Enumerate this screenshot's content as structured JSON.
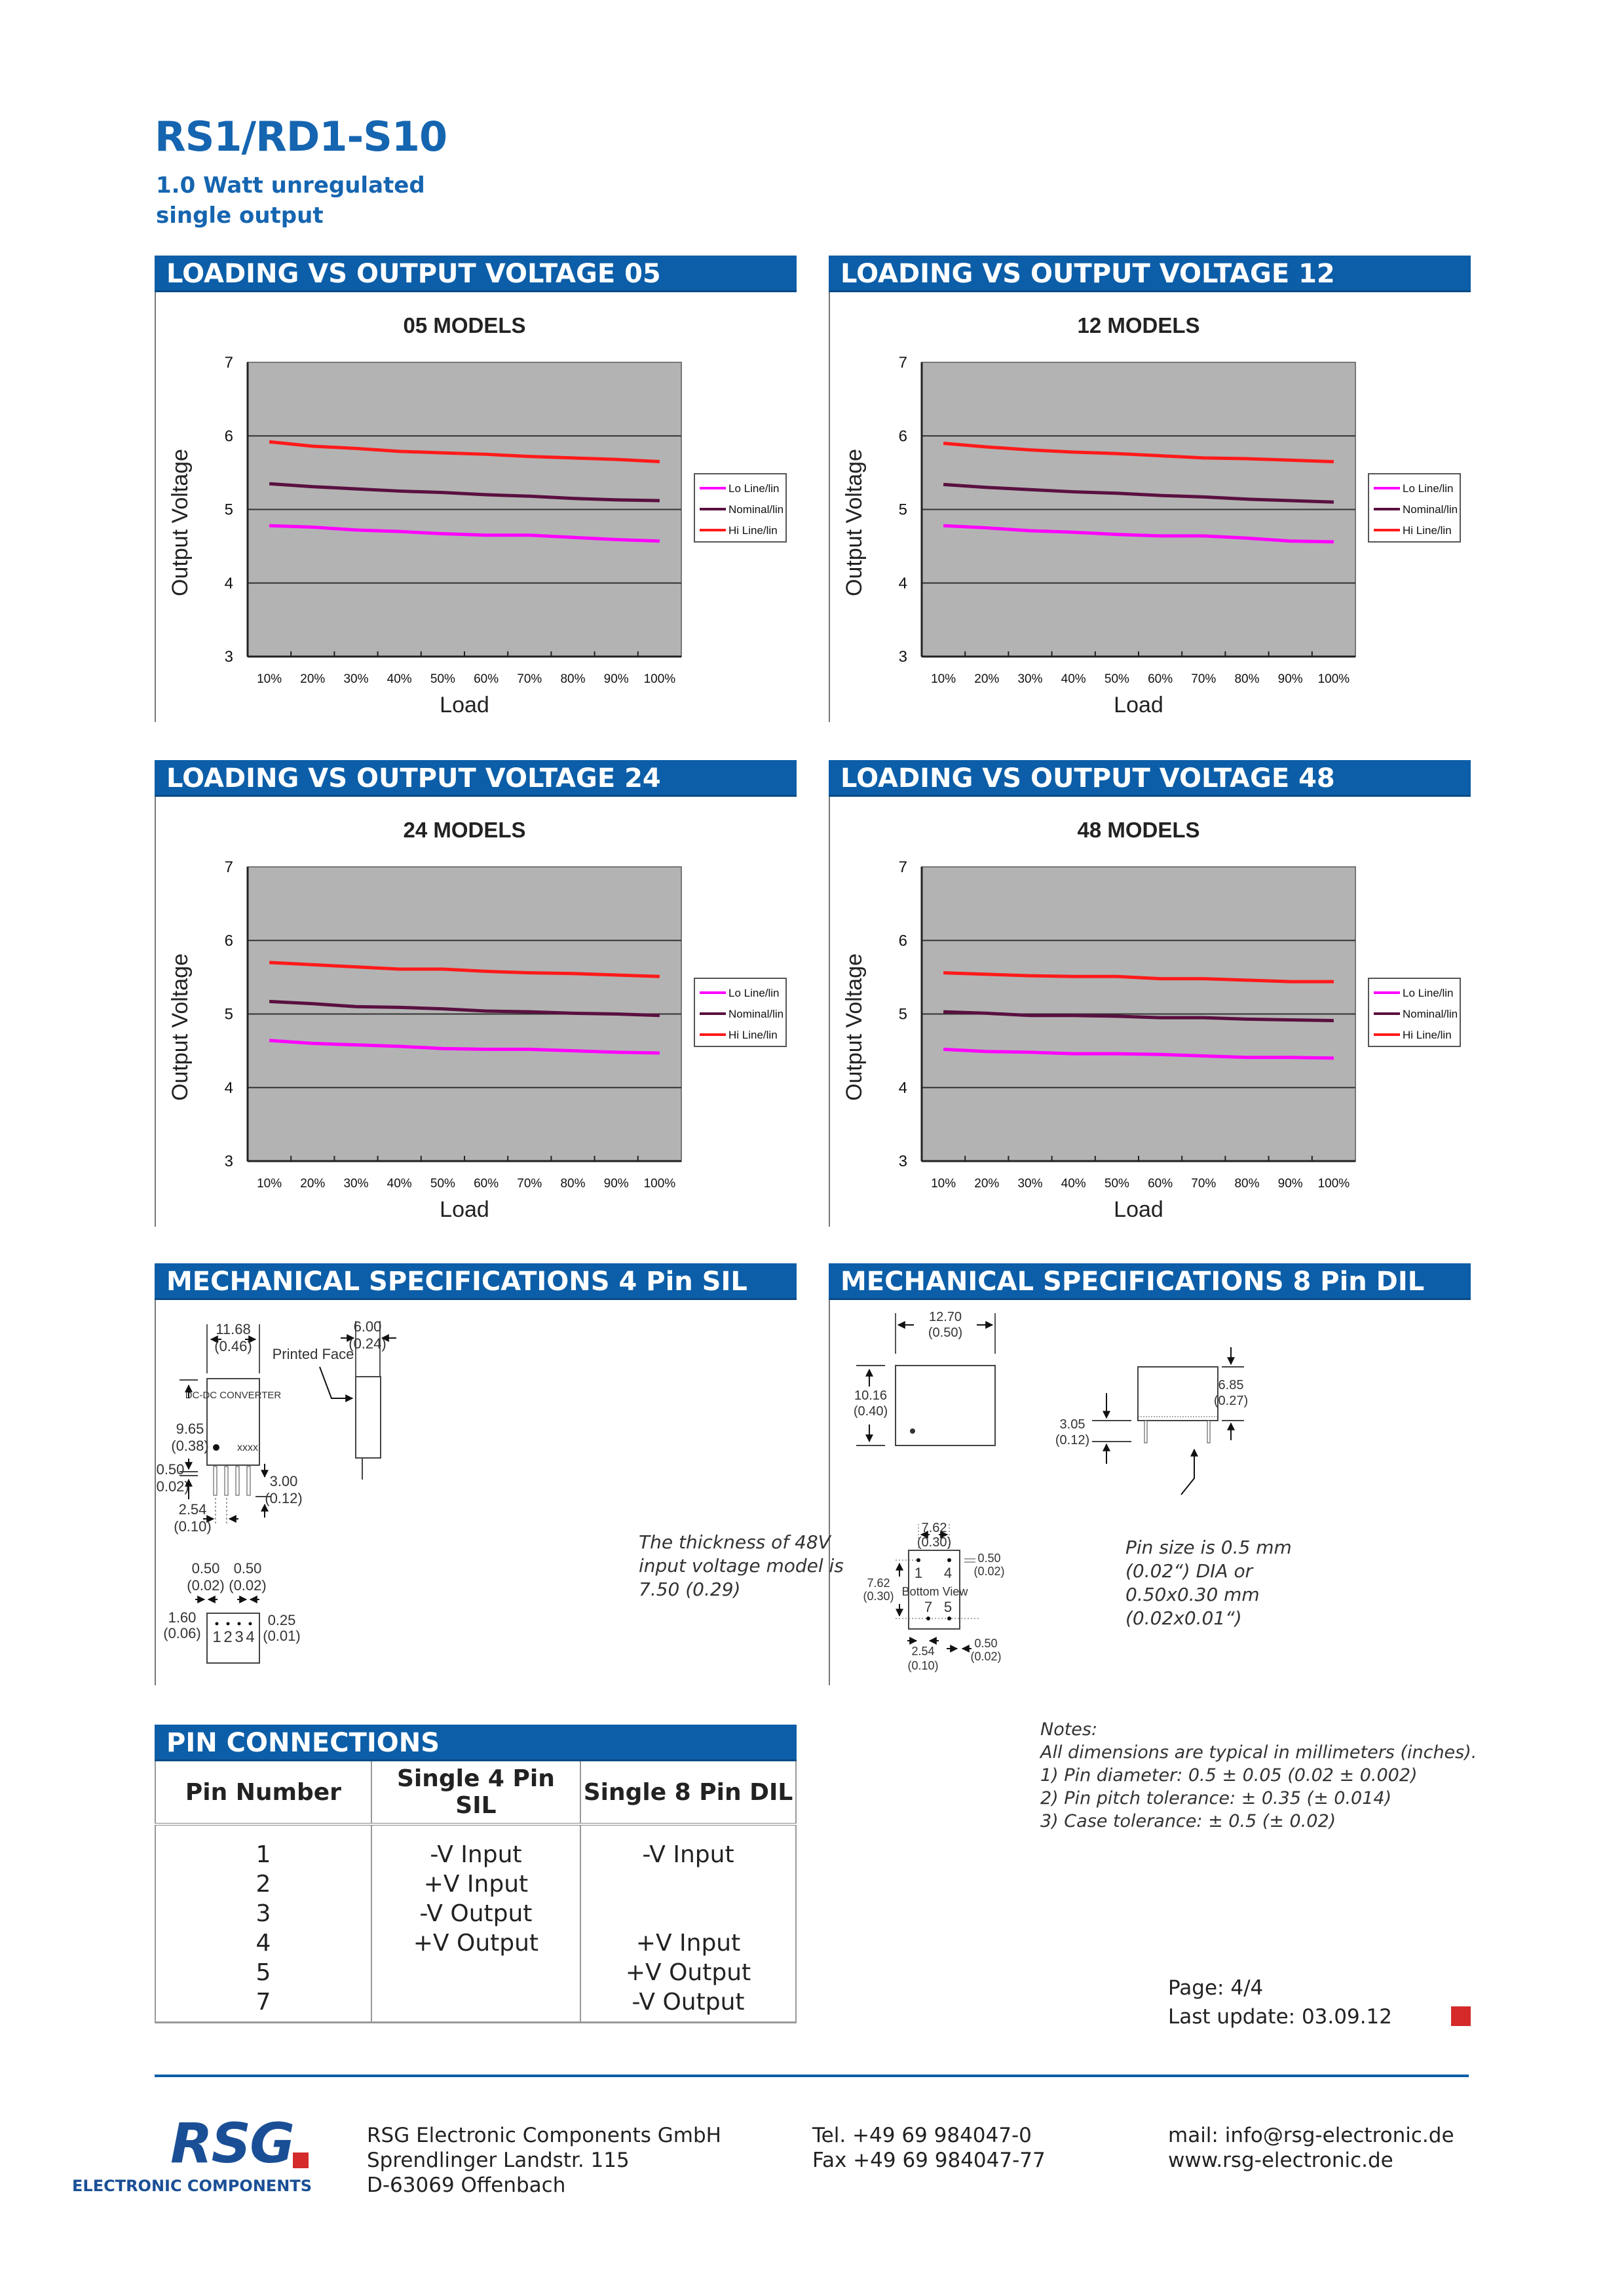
{
  "header": {
    "title": "RS1/RD1-S10",
    "subtitle_line1": "1.0 Watt unregulated",
    "subtitle_line2": "single output"
  },
  "sections": {
    "chart05": "LOADING VS OUTPUT VOLTAGE 05",
    "chart12": "LOADING VS OUTPUT VOLTAGE 12",
    "chart24": "LOADING VS OUTPUT VOLTAGE 24",
    "chart48": "LOADING VS OUTPUT VOLTAGE 48",
    "mech_sil": "MECHANICAL SPECIFICATIONS 4 Pin SIL",
    "mech_dil": "MECHANICAL SPECIFICATIONS 8 Pin DIL",
    "pins": "PIN CONNECTIONS"
  },
  "colors": {
    "brand_blue": "#0c5ea8",
    "plot_bg": "#b3b3b3",
    "lo_line": "#ff00ff",
    "nominal": "#5a1040",
    "hi_line": "#ff1a1a",
    "accent_red": "#d42a2a"
  },
  "chart_data": [
    {
      "type": "line",
      "title": "05 MODELS",
      "xlabel": "Load",
      "ylabel": "Output Voltage",
      "categories": [
        "10%",
        "20%",
        "30%",
        "40%",
        "50%",
        "60%",
        "70%",
        "80%",
        "90%",
        "100%"
      ],
      "yticks": [
        "3",
        "4",
        "5",
        "6",
        "7"
      ],
      "ylim": [
        3,
        7
      ],
      "grid": true,
      "legend_position": "right",
      "series": [
        {
          "name": "Lo Line/lin",
          "color": "#ff00ff",
          "values": [
            4.78,
            4.76,
            4.72,
            4.7,
            4.67,
            4.65,
            4.65,
            4.62,
            4.59,
            4.57
          ]
        },
        {
          "name": "Nominal/lin",
          "color": "#5a1040",
          "values": [
            5.35,
            5.31,
            5.28,
            5.25,
            5.23,
            5.2,
            5.18,
            5.15,
            5.13,
            5.12
          ]
        },
        {
          "name": "Hi Line/lin",
          "color": "#ff1a1a",
          "values": [
            5.92,
            5.86,
            5.83,
            5.79,
            5.77,
            5.75,
            5.72,
            5.7,
            5.68,
            5.65
          ]
        }
      ]
    },
    {
      "type": "line",
      "title": "12 MODELS",
      "xlabel": "Load",
      "ylabel": "Output Voltage",
      "categories": [
        "10%",
        "20%",
        "30%",
        "40%",
        "50%",
        "60%",
        "70%",
        "80%",
        "90%",
        "100%"
      ],
      "yticks": [
        "3",
        "4",
        "5",
        "6",
        "7"
      ],
      "ylim": [
        3,
        7
      ],
      "grid": true,
      "legend_position": "right",
      "series": [
        {
          "name": "Lo Line/lin",
          "color": "#ff00ff",
          "values": [
            4.78,
            4.75,
            4.71,
            4.69,
            4.66,
            4.64,
            4.64,
            4.61,
            4.57,
            4.56
          ]
        },
        {
          "name": "Nominal/lin",
          "color": "#5a1040",
          "values": [
            5.34,
            5.3,
            5.27,
            5.24,
            5.22,
            5.19,
            5.17,
            5.14,
            5.12,
            5.1
          ]
        },
        {
          "name": "Hi Line/lin",
          "color": "#ff1a1a",
          "values": [
            5.9,
            5.85,
            5.81,
            5.78,
            5.76,
            5.73,
            5.7,
            5.69,
            5.67,
            5.65
          ]
        }
      ]
    },
    {
      "type": "line",
      "title": "24 MODELS",
      "xlabel": "Load",
      "ylabel": "Output Voltage",
      "categories": [
        "10%",
        "20%",
        "30%",
        "40%",
        "50%",
        "60%",
        "70%",
        "80%",
        "90%",
        "100%"
      ],
      "yticks": [
        "3",
        "4",
        "5",
        "6",
        "7"
      ],
      "ylim": [
        3,
        7
      ],
      "grid": true,
      "legend_position": "right",
      "series": [
        {
          "name": "Lo Line/lin",
          "color": "#ff00ff",
          "values": [
            4.64,
            4.6,
            4.58,
            4.56,
            4.53,
            4.52,
            4.52,
            4.5,
            4.48,
            4.47
          ]
        },
        {
          "name": "Nominal/lin",
          "color": "#5a1040",
          "values": [
            5.17,
            5.14,
            5.1,
            5.09,
            5.07,
            5.04,
            5.03,
            5.01,
            5.0,
            4.98
          ]
        },
        {
          "name": "Hi Line/lin",
          "color": "#ff1a1a",
          "values": [
            5.7,
            5.67,
            5.64,
            5.61,
            5.61,
            5.58,
            5.56,
            5.55,
            5.53,
            5.51
          ]
        }
      ]
    },
    {
      "type": "line",
      "title": "48 MODELS",
      "xlabel": "Load",
      "ylabel": "Output Voltage",
      "categories": [
        "10%",
        "20%",
        "30%",
        "40%",
        "50%",
        "60%",
        "70%",
        "80%",
        "90%",
        "100%"
      ],
      "yticks": [
        "3",
        "4",
        "5",
        "6",
        "7"
      ],
      "ylim": [
        3,
        7
      ],
      "grid": true,
      "legend_position": "right",
      "series": [
        {
          "name": "Lo Line/lin",
          "color": "#ff00ff",
          "values": [
            4.52,
            4.49,
            4.48,
            4.46,
            4.46,
            4.45,
            4.43,
            4.41,
            4.41,
            4.4
          ]
        },
        {
          "name": "Nominal/lin",
          "color": "#5a1040",
          "values": [
            5.03,
            5.01,
            4.98,
            4.98,
            4.97,
            4.95,
            4.95,
            4.93,
            4.92,
            4.91
          ]
        },
        {
          "name": "Hi Line/lin",
          "color": "#ff1a1a",
          "values": [
            5.56,
            5.54,
            5.52,
            5.51,
            5.51,
            5.48,
            5.48,
            5.46,
            5.44,
            5.44
          ]
        }
      ]
    }
  ],
  "mech_sil": {
    "width_mm": "11.68",
    "width_in": "(0.46)",
    "height_mm": "9.65",
    "height_in": "(0.38)",
    "standoff_mm": "0.50",
    "standoff_in": "(0.02)",
    "pin_len_mm": "3.00",
    "pin_len_in": "(0.12)",
    "pitch_mm": "2.54",
    "pitch_in": "(0.10)",
    "depth_mm": "6.00",
    "depth_in": "(0.24)",
    "printed_face": "Printed Face",
    "case_label": "DC-DC CONVERTER",
    "case_mark": "xxxx",
    "pin_w1_mm": "0.50",
    "pin_w1_in": "(0.02)",
    "pin_w2_mm": "0.50",
    "pin_w2_in": "(0.02)",
    "pin_off_mm": "1.60",
    "pin_off_in": "(0.06)",
    "pin_t_mm": "0.25",
    "pin_t_in": "(0.01)",
    "pin_numbers": [
      "1",
      "2",
      "3",
      "4"
    ],
    "note": [
      "The thickness of 48V",
      "input voltage model is",
      "7.50 (0.29)"
    ]
  },
  "mech_dil": {
    "width_mm": "12.70",
    "width_in": "(0.50)",
    "height_mm": "10.16",
    "height_in": "(0.40)",
    "body_h_mm": "6.85",
    "body_h_in": "(0.27)",
    "pin_len_mm": "3.05",
    "pin_len_in": "(0.12)",
    "row_mm": "7.62",
    "row_in": "(0.30)",
    "col_mm": "7.62",
    "col_in": "(0.30)",
    "edge_mm": "0.50",
    "edge_in": "(0.02)",
    "pitch_mm": "2.54",
    "pitch_in": "(0.10)",
    "edge2_mm": "0.50",
    "edge2_in": "(0.02)",
    "bottom_view": "Bottom View",
    "pins": [
      "1",
      "4",
      "7",
      "5"
    ],
    "note": [
      "Pin size is 0.5 mm",
      "(0.02“) DIA or",
      "0.50x0.30 mm",
      "(0.02x0.01“)"
    ]
  },
  "pin_table": {
    "headers": [
      "Pin Number",
      "Single 4 Pin SIL",
      "Single 8 Pin DIL"
    ],
    "pin_numbers": [
      "1",
      "2",
      "3",
      "4",
      "5",
      "7"
    ],
    "sil": [
      "-V Input",
      "+V Input",
      "-V Output",
      "+V Output",
      "",
      ""
    ],
    "dil": [
      "-V Input",
      "",
      "",
      "+V Input",
      "+V Output",
      "-V Output"
    ]
  },
  "notes": {
    "heading": "Notes:",
    "intro": "All dimensions are typical in millimeters (inches).",
    "items": [
      "1)  Pin diameter: 0.5 ± 0.05 (0.02 ± 0.002)",
      "2)  Pin pitch tolerance: ± 0.35 (± 0.014)",
      "3)  Case tolerance: ± 0.5 (± 0.02)"
    ]
  },
  "page": {
    "page_label": "Page: 4/4",
    "last_update": "Last update: 03.09.12"
  },
  "footer": {
    "logo": "RSG",
    "logo_sub": "ELECTRONIC COMPONENTS",
    "company": "RSG Electronic Components GmbH",
    "street": "Sprendlinger Landstr. 115",
    "city": "D-63069 Offenbach",
    "tel": "Tel. +49 69 984047-0",
    "fax": "Fax +49 69 984047-77",
    "mail": "mail: info@rsg-electronic.de",
    "web": "www.rsg-electronic.de"
  }
}
